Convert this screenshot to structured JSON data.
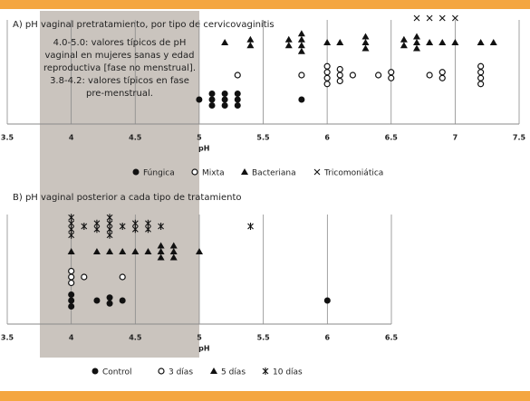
{
  "chart_data": [
    {
      "type": "dot",
      "title": "A) pH vaginal pretratamiento, por tipo de cervicovaginitis",
      "xlabel": "pH",
      "xlim": [
        3.5,
        7.5
      ],
      "xticks": [
        3.5,
        4,
        4.5,
        5,
        5.5,
        6,
        6.5,
        7,
        7.5
      ],
      "grid": true,
      "annotation": [
        "4.0-5.0: valores típicos de pH",
        "vaginal en mujeres sanas y edad",
        "reproductiva [fase no menstrual].",
        "3.8-4.2: valores típicos en fase",
        "pre-menstrual."
      ],
      "series": [
        {
          "name": "Fúngica",
          "marker": "circle-filled",
          "color": "#111111",
          "values": [
            5.0,
            5.1,
            5.1,
            5.1,
            5.2,
            5.2,
            5.2,
            5.3,
            5.3,
            5.3,
            5.8
          ]
        },
        {
          "name": "Mixta",
          "marker": "circle-open",
          "color": "#111111",
          "values": [
            5.3,
            5.8,
            6.0,
            6.0,
            6.0,
            6.0,
            6.1,
            6.1,
            6.1,
            6.2,
            6.4,
            6.5,
            6.5,
            6.8,
            6.9,
            6.9,
            7.2,
            7.2,
            7.2,
            7.2
          ]
        },
        {
          "name": "Bacteriana",
          "marker": "triangle",
          "color": "#111111",
          "values": [
            5.2,
            5.4,
            5.4,
            5.7,
            5.7,
            5.8,
            5.8,
            5.8,
            5.8,
            6.0,
            6.1,
            6.3,
            6.3,
            6.3,
            6.6,
            6.6,
            6.7,
            6.7,
            6.7,
            6.8,
            6.9,
            7.0,
            7.2,
            7.3
          ]
        },
        {
          "name": "Tricomoniática",
          "marker": "cross",
          "color": "#111111",
          "values": [
            6.7,
            6.8,
            6.9,
            7.0
          ]
        }
      ]
    },
    {
      "type": "dot",
      "title": "B) pH vaginal posterior a cada tipo de tratamiento",
      "xlabel": "pH",
      "xlim": [
        3.5,
        6.5
      ],
      "xticks": [
        3.5,
        4,
        4.5,
        5,
        5.5,
        6,
        6.5
      ],
      "grid": true,
      "series": [
        {
          "name": "Control",
          "marker": "circle-filled",
          "color": "#111111",
          "values": [
            4.0,
            4.0,
            4.0,
            4.2,
            4.3,
            4.3,
            4.4,
            6.0
          ]
        },
        {
          "name": "3 días",
          "marker": "circle-open",
          "color": "#111111",
          "values": [
            4.0,
            4.0,
            4.0,
            4.1,
            4.4
          ]
        },
        {
          "name": "5 días",
          "marker": "triangle",
          "color": "#111111",
          "values": [
            4.0,
            4.2,
            4.3,
            4.4,
            4.5,
            4.6,
            4.7,
            4.7,
            4.7,
            4.8,
            4.8,
            4.8,
            5.0
          ]
        },
        {
          "name": "10 días",
          "marker": "asterisk",
          "color": "#111111",
          "values": [
            4.0,
            4.0,
            4.0,
            4.0,
            4.1,
            4.2,
            4.2,
            4.3,
            4.3,
            4.3,
            4.3,
            4.4,
            4.5,
            4.5,
            4.6,
            4.6,
            4.7,
            5.4
          ]
        }
      ]
    }
  ]
}
